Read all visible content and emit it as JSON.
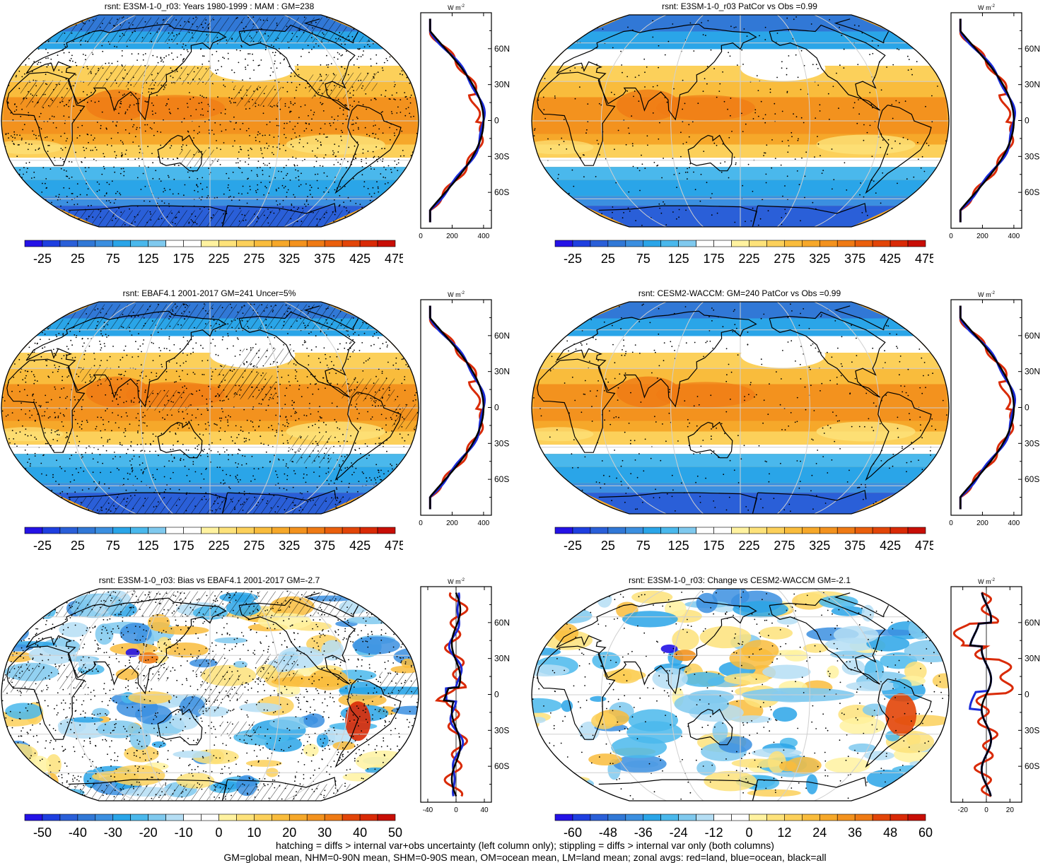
{
  "panels": [
    {
      "id": "p1",
      "title": "rsnt: E3SM-1-0_r03: Years 1980-1999 : MAM : GM=238",
      "kind": "abs",
      "hatching": true,
      "stipple": "heavy",
      "cb_labels": [
        "-25",
        "25",
        "75",
        "125",
        "175",
        "225",
        "275",
        "325",
        "375",
        "425",
        "475"
      ],
      "zonal": {
        "unit_top": "W m",
        "unit_sup": "-2",
        "lat_labels": [
          "60N",
          "30N",
          "0",
          "30S",
          "60S"
        ],
        "x_labels": [
          "0",
          "200",
          "400"
        ],
        "xlim": [
          0,
          450
        ]
      }
    },
    {
      "id": "p2",
      "title": "rsnt: E3SM-1-0_r03 PatCor vs Obs =0.99",
      "kind": "abs",
      "hatching": false,
      "stipple": "light",
      "cb_labels": [
        "-25",
        "25",
        "75",
        "125",
        "175",
        "225",
        "275",
        "325",
        "375",
        "425",
        "475"
      ],
      "zonal": {
        "unit_top": "W m",
        "unit_sup": "-2",
        "lat_labels": [
          "60N",
          "30N",
          "0",
          "30S",
          "60S"
        ],
        "x_labels": [
          "0",
          "200",
          "400"
        ],
        "xlim": [
          0,
          450
        ]
      }
    },
    {
      "id": "p3",
      "title": "rsnt: EBAF4.1 2001-2017 GM=241 Uncer=5%",
      "kind": "abs",
      "hatching": true,
      "stipple": "heavy",
      "cb_labels": [
        "-25",
        "25",
        "75",
        "125",
        "175",
        "225",
        "275",
        "325",
        "375",
        "425",
        "475"
      ],
      "zonal": {
        "unit_top": "W m",
        "unit_sup": "-2",
        "lat_labels": [
          "60N",
          "30N",
          "0",
          "30S",
          "60S"
        ],
        "x_labels": [
          "0",
          "200",
          "400"
        ],
        "xlim": [
          0,
          450
        ]
      }
    },
    {
      "id": "p4",
      "title": "rsnt: CESM2-WACCM: GM=240 PatCor vs Obs =0.99",
      "kind": "abs",
      "hatching": false,
      "stipple": "light",
      "cb_labels": [
        "-25",
        "25",
        "75",
        "125",
        "175",
        "225",
        "275",
        "325",
        "375",
        "425",
        "475"
      ],
      "zonal": {
        "unit_top": "W m",
        "unit_sup": "-2",
        "lat_labels": [
          "60N",
          "30N",
          "0",
          "30S",
          "60S"
        ],
        "x_labels": [
          "0",
          "200",
          "400"
        ],
        "xlim": [
          0,
          450
        ]
      }
    },
    {
      "id": "p5",
      "title": "rsnt: E3SM-1-0_r03: Bias vs EBAF4.1 2001-2017 GM=-2.7",
      "kind": "bias",
      "hatching": true,
      "stipple": "heavy",
      "cb_labels": [
        "-50",
        "-40",
        "-30",
        "-20",
        "-10",
        "0",
        "10",
        "20",
        "30",
        "40",
        "50"
      ],
      "zonal": {
        "unit_top": "W m",
        "unit_sup": "-2",
        "lat_labels": [
          "60N",
          "30N",
          "0",
          "30S",
          "60S"
        ],
        "x_labels": [
          "-40",
          "0",
          "40"
        ],
        "xlim": [
          -50,
          50
        ]
      }
    },
    {
      "id": "p6",
      "title": "rsnt: E3SM-1-0_r03: Change vs CESM2-WACCM GM=-2.1",
      "kind": "change",
      "hatching": false,
      "stipple": "light",
      "cb_labels": [
        "-60",
        "-48",
        "-36",
        "-24",
        "-12",
        "0",
        "12",
        "24",
        "36",
        "48",
        "60"
      ],
      "zonal": {
        "unit_top": "W m",
        "unit_sup": "-2",
        "lat_labels": [
          "60N",
          "30N",
          "0",
          "30S",
          "60S"
        ],
        "x_labels": [
          "-20",
          "0",
          "20"
        ],
        "xlim": [
          -30,
          30
        ]
      }
    }
  ],
  "colors": {
    "abs_scale": [
      "#2412e6",
      "#1e3fe0",
      "#2a5fd8",
      "#3178d6",
      "#3b8fe0",
      "#2aa5e8",
      "#4ab8ec",
      "#7fc9ee",
      "#ffffff",
      "#ffffff",
      "#fff2a0",
      "#fde27a",
      "#fcd05a",
      "#f9bc3c",
      "#f6a82a",
      "#f3921e",
      "#ef7a14",
      "#ea5f0c",
      "#e24508",
      "#d92a06",
      "#c80e06"
    ],
    "diff_scale": [
      "#2412e6",
      "#1e3fe0",
      "#2a5fd8",
      "#3178d6",
      "#3b8fe0",
      "#2aa5e8",
      "#4ab8ec",
      "#7fc9ee",
      "#b5def4",
      "#ffffff",
      "#ffffff",
      "#fff2a0",
      "#fde27a",
      "#fcd05a",
      "#f9bc3c",
      "#f6a82a",
      "#f3921e",
      "#ef7a14",
      "#e24508",
      "#d92a06",
      "#c80e06"
    ],
    "land": "#d92a06",
    "ocean": "#1a2ad8",
    "all": "#000000"
  },
  "footer": {
    "line1": "hatching = diffs > internal var+obs uncertainty (left column only); stippling = diffs > internal var only (both columns)",
    "line2": "GM=global mean, NHM=0-90N mean, SHM=0-90S mean, OM=ocean mean, LM=land mean; zonal avgs: red=land, blue=ocean, black=all"
  }
}
